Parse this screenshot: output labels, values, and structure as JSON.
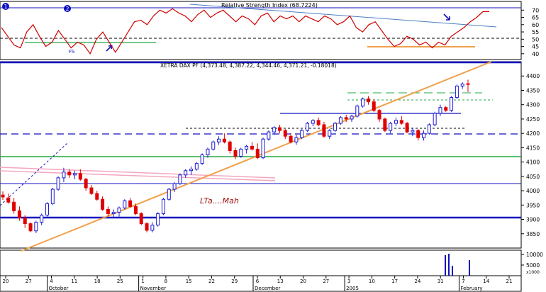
{
  "rsi_panel": {
    "title": "Relative Strength Index (68.7224)",
    "ylim": [
      36,
      76
    ],
    "ticks": [
      "70",
      "65",
      "60",
      "55",
      "50",
      "45",
      "40"
    ],
    "tick_values": [
      70,
      65,
      60,
      55,
      50,
      45,
      40
    ],
    "label_fs": "FS",
    "markers": [
      "1",
      "2"
    ]
  },
  "price_panel": {
    "title": "XETRA DAX PF (4,373.48, 4,387.22, 4,344.46, 4,371.21, -0.18018)",
    "ylim": [
      3800,
      4450
    ],
    "ticks": [
      "4400",
      "4350",
      "4300",
      "4250",
      "4200",
      "4150",
      "4100",
      "4050",
      "4000",
      "3950",
      "3900",
      "3850"
    ],
    "tick_values": [
      4400,
      4350,
      4300,
      4250,
      4200,
      4150,
      4100,
      4050,
      4000,
      3950,
      3900,
      3850
    ],
    "annotation": "LTa....Mah"
  },
  "volume_panel": {
    "ticks": [
      "10000",
      "5000"
    ],
    "tick_values": [
      10000,
      5000
    ],
    "bottom_label": "x1000"
  },
  "x_axis": {
    "day_ticks": [
      "20",
      "27",
      "4",
      "11",
      "18",
      "25",
      "1",
      "8",
      "15",
      "22",
      "29",
      "6",
      "13",
      "20",
      "27",
      "3",
      "10",
      "17",
      "24",
      "31",
      "7",
      "14",
      "21"
    ],
    "months": [
      "October",
      "November",
      "December",
      "2005",
      "February"
    ]
  },
  "colors": {
    "up": "#1b1bd6",
    "down": "#e00000",
    "rsi_line": "#d00000",
    "trendline": "#f0a04b",
    "support_green": "#22aa44",
    "support_blue": "#1010c0",
    "pink": "#f4a6c0"
  },
  "chart_data": [
    {
      "type": "line",
      "title": "Relative Strength Index (68.7224)",
      "ylim": [
        36,
        76
      ],
      "series": [
        {
          "name": "Relative Strength Index",
          "values": [
            58,
            52,
            46,
            44,
            55,
            60,
            52,
            45,
            48,
            56,
            50,
            44,
            48,
            46,
            40,
            50,
            55,
            48,
            41,
            48,
            55,
            62,
            63,
            60,
            66,
            70,
            68,
            71,
            68,
            66,
            62,
            67,
            70,
            65,
            68,
            70,
            66,
            62,
            66,
            64,
            60,
            66,
            68,
            62,
            66,
            64,
            66,
            62,
            66,
            64,
            62,
            66,
            64,
            60,
            62,
            66,
            58,
            55,
            60,
            62,
            56,
            50,
            45,
            47,
            52,
            50,
            46,
            48,
            44,
            48,
            46,
            52,
            55,
            58,
            62,
            65,
            69,
            69
          ]
        }
      ]
    },
    {
      "type": "candlestick",
      "title": "XETRA DAX PF (4,373.48, 4,387.22, 4,344.46, 4,371.21, -0.18018)",
      "ylim": [
        3800,
        4450
      ],
      "columns": [
        "open",
        "high",
        "low",
        "close"
      ],
      "candles": [
        [
          3985,
          3998,
          3968,
          3978
        ],
        [
          3975,
          3990,
          3955,
          3960
        ],
        [
          3960,
          3975,
          3920,
          3930
        ],
        [
          3930,
          3945,
          3895,
          3905
        ],
        [
          3905,
          3915,
          3870,
          3885
        ],
        [
          3885,
          3890,
          3855,
          3860
        ],
        [
          3860,
          3895,
          3852,
          3890
        ],
        [
          3890,
          3920,
          3880,
          3915
        ],
        [
          3915,
          3960,
          3910,
          3955
        ],
        [
          3955,
          4010,
          3950,
          4005
        ],
        [
          4005,
          4050,
          4000,
          4045
        ],
        [
          4045,
          4080,
          4030,
          4065
        ],
        [
          4065,
          4075,
          4045,
          4055
        ],
        [
          4055,
          4070,
          4040,
          4060
        ],
        [
          4060,
          4075,
          4035,
          4040
        ],
        [
          4040,
          4045,
          4000,
          4010
        ],
        [
          4010,
          4020,
          3985,
          3990
        ],
        [
          3990,
          4000,
          3965,
          3970
        ],
        [
          3970,
          3980,
          3930,
          3935
        ],
        [
          3935,
          3945,
          3910,
          3920
        ],
        [
          3920,
          3935,
          3905,
          3925
        ],
        [
          3925,
          3945,
          3910,
          3940
        ],
        [
          3940,
          3970,
          3935,
          3965
        ],
        [
          3965,
          3975,
          3940,
          3945
        ],
        [
          3945,
          3955,
          3915,
          3920
        ],
        [
          3920,
          3925,
          3880,
          3885
        ],
        [
          3885,
          3890,
          3855,
          3862
        ],
        [
          3862,
          3890,
          3855,
          3880
        ],
        [
          3880,
          3925,
          3875,
          3920
        ],
        [
          3920,
          3975,
          3915,
          3970
        ],
        [
          3970,
          4010,
          3965,
          4005
        ],
        [
          4005,
          4030,
          3995,
          4025
        ],
        [
          4025,
          4060,
          4020,
          4055
        ],
        [
          4055,
          4075,
          4045,
          4070
        ],
        [
          4070,
          4085,
          4055,
          4075
        ],
        [
          4075,
          4100,
          4070,
          4095
        ],
        [
          4095,
          4130,
          4090,
          4125
        ],
        [
          4125,
          4150,
          4115,
          4145
        ],
        [
          4145,
          4175,
          4140,
          4170
        ],
        [
          4170,
          4190,
          4160,
          4180
        ],
        [
          4180,
          4200,
          4165,
          4170
        ],
        [
          4170,
          4175,
          4130,
          4140
        ],
        [
          4140,
          4150,
          4110,
          4120
        ],
        [
          4120,
          4150,
          4115,
          4145
        ],
        [
          4145,
          4160,
          4130,
          4155
        ],
        [
          4155,
          4170,
          4140,
          4145
        ],
        [
          4145,
          4165,
          4110,
          4115
        ],
        [
          4115,
          4185,
          4110,
          4180
        ],
        [
          4180,
          4210,
          4175,
          4205
        ],
        [
          4205,
          4225,
          4195,
          4220
        ],
        [
          4220,
          4230,
          4200,
          4210
        ],
        [
          4210,
          4215,
          4180,
          4190
        ],
        [
          4190,
          4200,
          4165,
          4170
        ],
        [
          4170,
          4195,
          4160,
          4185
        ],
        [
          4185,
          4215,
          4180,
          4210
        ],
        [
          4210,
          4240,
          4205,
          4235
        ],
        [
          4235,
          4250,
          4225,
          4245
        ],
        [
          4245,
          4255,
          4225,
          4230
        ],
        [
          4230,
          4240,
          4185,
          4190
        ],
        [
          4190,
          4215,
          4180,
          4210
        ],
        [
          4210,
          4240,
          4205,
          4235
        ],
        [
          4235,
          4260,
          4230,
          4255
        ],
        [
          4255,
          4265,
          4240,
          4250
        ],
        [
          4250,
          4265,
          4240,
          4260
        ],
        [
          4260,
          4300,
          4255,
          4295
        ],
        [
          4295,
          4325,
          4290,
          4320
        ],
        [
          4320,
          4330,
          4300,
          4310
        ],
        [
          4310,
          4320,
          4275,
          4280
        ],
        [
          4280,
          4285,
          4240,
          4250
        ],
        [
          4250,
          4255,
          4205,
          4210
        ],
        [
          4210,
          4240,
          4200,
          4235
        ],
        [
          4235,
          4255,
          4225,
          4245
        ],
        [
          4245,
          4260,
          4230,
          4235
        ],
        [
          4235,
          4240,
          4200,
          4205
        ],
        [
          4205,
          4220,
          4190,
          4210
        ],
        [
          4210,
          4215,
          4175,
          4185
        ],
        [
          4185,
          4210,
          4175,
          4200
        ],
        [
          4200,
          4235,
          4195,
          4230
        ],
        [
          4230,
          4275,
          4225,
          4270
        ],
        [
          4270,
          4300,
          4260,
          4290
        ],
        [
          4290,
          4295,
          4275,
          4280
        ],
        [
          4280,
          4330,
          4275,
          4325
        ],
        [
          4325,
          4370,
          4320,
          4365
        ],
        [
          4365,
          4378,
          4355,
          4372
        ],
        [
          4373,
          4387,
          4344,
          4371
        ]
      ]
    }
  ]
}
